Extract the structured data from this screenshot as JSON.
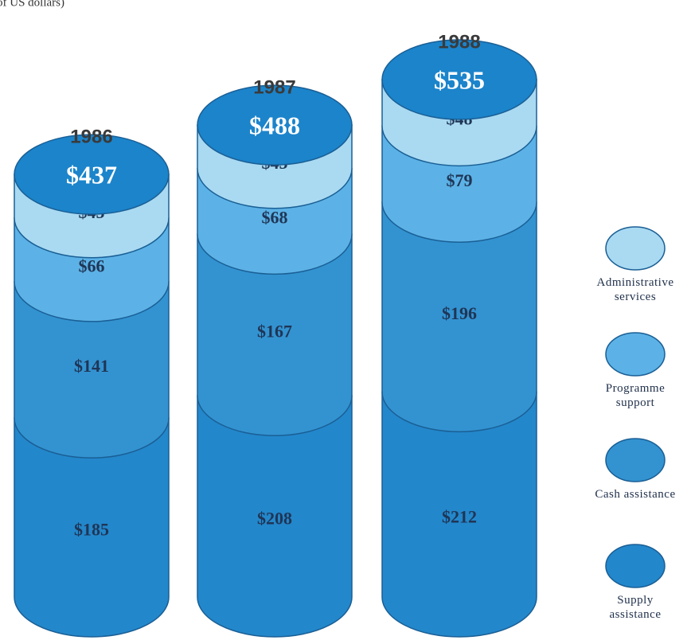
{
  "chart_data": {
    "type": "stacked-cylinder",
    "subtitle": "of US dollars)",
    "categories": [
      "1986",
      "1987",
      "1988"
    ],
    "totals": [
      437,
      488,
      535
    ],
    "total_labels": [
      "$437",
      "$488",
      "$535"
    ],
    "series": [
      {
        "name": "Supply assistance",
        "color": "#2387cb",
        "values": [
          185,
          208,
          212
        ],
        "value_labels": [
          "$185",
          "$208",
          "$212"
        ]
      },
      {
        "name": "Cash assistance",
        "color": "#3393d1",
        "values": [
          141,
          167,
          196
        ],
        "value_labels": [
          "$141",
          "$167",
          "$196"
        ]
      },
      {
        "name": "Programme support",
        "color": "#5cb2e6",
        "values": [
          66,
          68,
          79
        ],
        "value_labels": [
          "$66",
          "$68",
          "$79"
        ]
      },
      {
        "name": "Administrative services",
        "color": "#a9daf2",
        "values": [
          45,
          45,
          48
        ],
        "value_labels": [
          "$45",
          "$45",
          "$48"
        ]
      }
    ],
    "cap_color": "#1b84cb"
  }
}
